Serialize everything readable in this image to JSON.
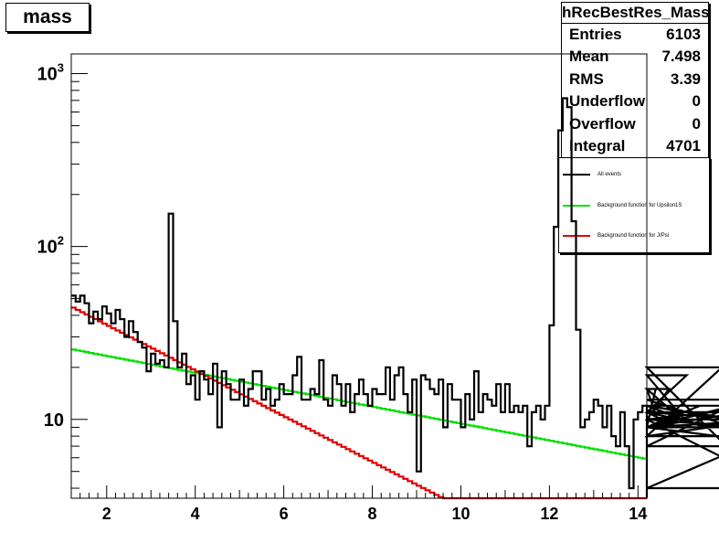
{
  "title": "mass",
  "stats": {
    "name": "hRecBestRes_Mass",
    "rows": [
      {
        "label": "Entries",
        "value": "6103"
      },
      {
        "label": "Mean",
        "value": "7.498"
      },
      {
        "label": "RMS",
        "value": "3.39"
      },
      {
        "label": "Underflow",
        "value": "0"
      },
      {
        "label": "Overflow",
        "value": "0"
      },
      {
        "label": "Integral",
        "value": "4701"
      }
    ]
  },
  "legend": [
    {
      "label": "All events",
      "color": "#000000"
    },
    {
      "label": "Background function for Upsilon1S",
      "color": "#00e000"
    },
    {
      "label": "Background function for J/Psi",
      "color": "#e00000"
    }
  ],
  "chart_data": {
    "type": "line",
    "log_y": true,
    "xlim": [
      1.2,
      14.2
    ],
    "ylim": [
      3.5,
      1300
    ],
    "x_ticks": [
      2,
      4,
      6,
      8,
      10,
      12,
      14
    ],
    "y_ticks": [
      {
        "value": 10,
        "label": "10"
      },
      {
        "value": 100,
        "label": "10^2"
      },
      {
        "value": 1000,
        "label": "10^3"
      }
    ],
    "histogram": {
      "name": "All events",
      "bin_edges_start": 1.2,
      "bin_width": 0.1,
      "values": [
        52,
        48,
        52,
        47,
        36,
        42,
        38,
        45,
        41,
        36,
        43,
        38,
        30,
        37,
        32,
        28,
        26,
        19,
        24,
        21,
        22,
        20,
        155,
        37,
        20,
        24,
        16,
        18,
        13,
        19,
        17,
        14,
        21,
        9,
        19,
        16,
        13,
        13,
        17,
        12,
        15,
        19,
        19,
        13,
        15,
        12,
        13,
        16,
        14,
        14,
        18,
        23,
        13,
        13,
        15,
        14,
        22,
        13,
        12,
        18,
        16,
        12,
        16,
        11,
        14,
        17,
        14,
        12,
        15,
        14,
        14,
        20,
        13,
        18,
        20,
        14,
        11,
        17,
        5,
        18,
        17,
        15,
        14,
        17,
        9,
        16,
        13,
        13,
        9,
        14,
        10,
        19,
        11,
        14,
        13,
        12,
        16,
        11,
        16,
        11,
        12,
        11,
        12,
        7,
        11,
        12,
        10,
        12,
        35,
        130,
        470,
        720,
        640,
        140,
        33,
        9,
        10,
        11,
        13,
        12,
        9,
        12,
        8,
        7,
        11,
        7,
        4,
        10,
        11,
        12,
        9,
        9,
        15,
        9,
        10,
        15,
        11,
        9,
        11,
        18,
        9,
        9,
        12,
        9,
        11,
        9,
        8,
        20,
        7,
        12,
        10,
        9,
        11,
        10,
        9,
        13,
        8,
        10,
        12,
        9,
        10,
        4,
        9
      ]
    },
    "fits": [
      {
        "name": "Background function for Upsilon1S",
        "type": "exponential",
        "points": [
          [
            1.2,
            25.5
          ],
          [
            14.2,
            5.9
          ]
        ]
      },
      {
        "name": "Background function for J/Psi",
        "type": "exponential",
        "points": [
          [
            1.2,
            45
          ],
          [
            9.6,
            3.5
          ]
        ],
        "floor_after": 9.6
      }
    ]
  }
}
